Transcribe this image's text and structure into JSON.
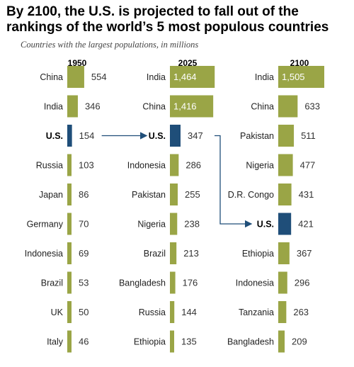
{
  "header": {
    "title": "By 2100, the U.S. is projected to fall out of the rankings of the world’s 5 most populous countries",
    "subtitle": "Countries with the largest populations, in millions"
  },
  "colors": {
    "bar": "#9aa546",
    "highlight": "#1f4e79",
    "arrow": "#1f4e79"
  },
  "chart_data": {
    "type": "bar",
    "unit": "millions",
    "highlight": "U.S.",
    "columns": [
      {
        "year": "1950",
        "categories": [
          "China",
          "India",
          "U.S.",
          "Russia",
          "Japan",
          "Germany",
          "Indonesia",
          "Brazil",
          "UK",
          "Italy"
        ],
        "values": [
          554,
          346,
          154,
          103,
          86,
          70,
          69,
          53,
          50,
          46
        ]
      },
      {
        "year": "2025",
        "categories": [
          "India",
          "China",
          "U.S.",
          "Indonesia",
          "Pakistan",
          "Nigeria",
          "Brazil",
          "Bangladesh",
          "Russia",
          "Ethiopia"
        ],
        "values": [
          1464,
          1416,
          347,
          286,
          255,
          238,
          213,
          176,
          144,
          135
        ]
      },
      {
        "year": "2100",
        "categories": [
          "India",
          "China",
          "Pakistan",
          "Nigeria",
          "D.R. Congo",
          "U.S.",
          "Ethiopia",
          "Indonesia",
          "Tanzania",
          "Bangladesh"
        ],
        "values": [
          1505,
          633,
          511,
          477,
          431,
          421,
          367,
          296,
          263,
          209
        ]
      }
    ],
    "value_labels": [
      [
        "554",
        "346",
        "154",
        "103",
        "86",
        "70",
        "69",
        "53",
        "50",
        "46"
      ],
      [
        "1,464",
        "1,416",
        "347",
        "286",
        "255",
        "238",
        "213",
        "176",
        "144",
        "135"
      ],
      [
        "1,505",
        "633",
        "511",
        "477",
        "431",
        "421",
        "367",
        "296",
        "263",
        "209"
      ]
    ]
  }
}
